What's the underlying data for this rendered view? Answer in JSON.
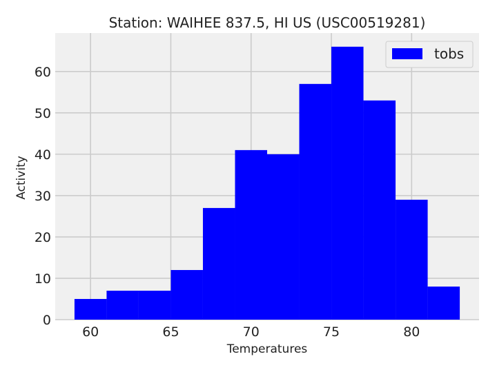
{
  "chart_data": {
    "type": "bar",
    "title": "Station: WAIHEE 837.5, HI US (USC00519281)",
    "xlabel": "Temperatures",
    "ylabel": "Activity",
    "bins": [
      {
        "x0": 59.0,
        "x1": 61.0,
        "count": 5
      },
      {
        "x0": 61.0,
        "x1": 63.0,
        "count": 7
      },
      {
        "x0": 63.0,
        "x1": 65.0,
        "count": 7
      },
      {
        "x0": 65.0,
        "x1": 67.0,
        "count": 12
      },
      {
        "x0": 67.0,
        "x1": 69.0,
        "count": 27
      },
      {
        "x0": 69.0,
        "x1": 71.0,
        "count": 41
      },
      {
        "x0": 71.0,
        "x1": 73.0,
        "count": 40
      },
      {
        "x0": 73.0,
        "x1": 75.0,
        "count": 57
      },
      {
        "x0": 75.0,
        "x1": 77.0,
        "count": 66
      },
      {
        "x0": 77.0,
        "x1": 79.0,
        "count": 53
      },
      {
        "x0": 79.0,
        "x1": 81.0,
        "count": 29
      },
      {
        "x0": 81.0,
        "x1": 83.0,
        "count": 8
      }
    ],
    "series": [
      {
        "name": "tobs",
        "color": "#0000ff"
      }
    ],
    "xlim": [
      57.8,
      84.2
    ],
    "ylim": [
      0,
      69.3
    ],
    "xticks": [
      60,
      65,
      70,
      75,
      80
    ],
    "yticks": [
      0,
      10,
      20,
      30,
      40,
      50,
      60
    ],
    "grid": true,
    "legend_position": "top-right",
    "background_color": "#f0f0f0",
    "grid_color": "#cbcbcb"
  }
}
